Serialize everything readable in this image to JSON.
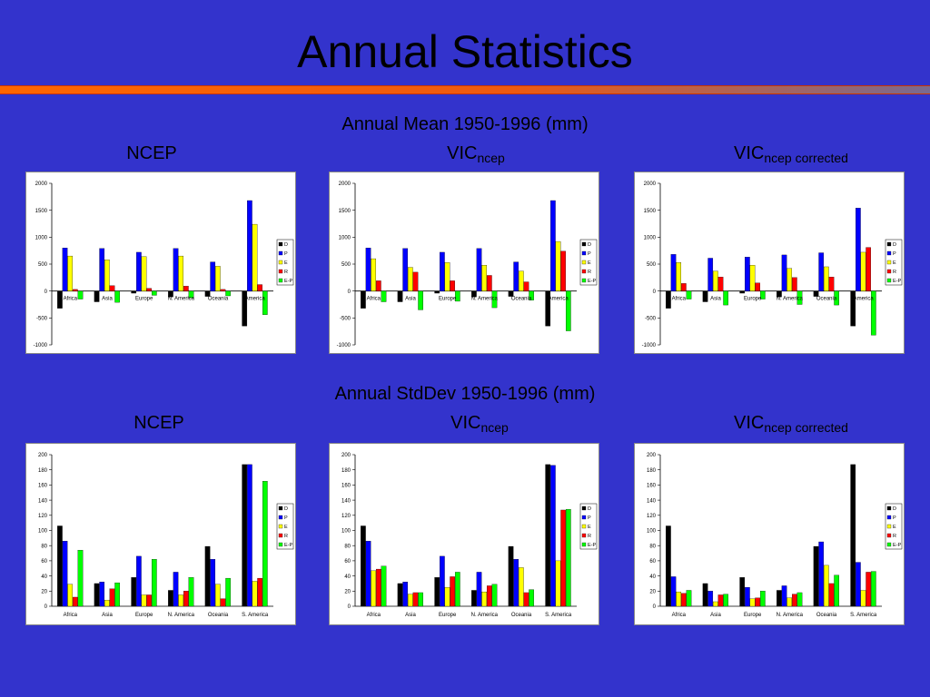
{
  "slide": {
    "title": "Annual Statistics"
  },
  "sections": {
    "mean": "Annual Mean 1950-1996 (mm)",
    "stddev": "Annual StdDev 1950-1996 (mm)"
  },
  "labels": {
    "ncep": "NCEP",
    "vic": "VIC",
    "sub_ncep": "ncep",
    "sub_corrected": "ncep corrected"
  },
  "colors": {
    "D": "#000000",
    "P": "#0000ff",
    "E": "#ffff00",
    "R": "#ff0000",
    "E-P": "#00ff00"
  },
  "chart_data": [
    {
      "type": "bar",
      "id": "mean-ncep",
      "categories": [
        "Africa",
        "Asia",
        "Europe",
        "N. America",
        "Oceania",
        "America"
      ],
      "ylim": [
        -1000,
        2000
      ],
      "yticks": [
        -1000,
        -500,
        0,
        500,
        1000,
        1500,
        2000
      ],
      "legend": "right",
      "series": [
        {
          "name": "D",
          "values": [
            -320,
            -200,
            -40,
            -110,
            -100,
            -650
          ]
        },
        {
          "name": "P",
          "values": [
            800,
            790,
            720,
            790,
            540,
            1680
          ]
        },
        {
          "name": "E",
          "values": [
            650,
            580,
            640,
            650,
            460,
            1240
          ]
        },
        {
          "name": "R",
          "values": [
            30,
            100,
            50,
            90,
            30,
            120
          ]
        },
        {
          "name": "E-P",
          "values": [
            -150,
            -210,
            -80,
            -130,
            -90,
            -440
          ]
        }
      ]
    },
    {
      "type": "bar",
      "id": "mean-vic-ncep",
      "categories": [
        "Africa",
        "Asia",
        "Europe",
        "N. America",
        "Oceania",
        "America"
      ],
      "ylim": [
        -1000,
        2000
      ],
      "yticks": [
        -1000,
        -500,
        0,
        500,
        1000,
        1500,
        2000
      ],
      "legend": "right",
      "series": [
        {
          "name": "D",
          "values": [
            -320,
            -200,
            -40,
            -110,
            -100,
            -650
          ]
        },
        {
          "name": "P",
          "values": [
            800,
            790,
            720,
            790,
            540,
            1680
          ]
        },
        {
          "name": "E",
          "values": [
            600,
            440,
            530,
            480,
            370,
            920
          ]
        },
        {
          "name": "R",
          "values": [
            190,
            350,
            190,
            290,
            170,
            740
          ]
        },
        {
          "name": "E-P",
          "values": [
            -200,
            -350,
            -190,
            -310,
            -170,
            -740
          ]
        }
      ]
    },
    {
      "type": "bar",
      "id": "mean-vic-corrected",
      "categories": [
        "Africa",
        "Asia",
        "Europe",
        "N. America",
        "Oceania",
        "America"
      ],
      "ylim": [
        -1000,
        2000
      ],
      "yticks": [
        -1000,
        -500,
        0,
        500,
        1000,
        1500,
        2000
      ],
      "legend": "right",
      "series": [
        {
          "name": "D",
          "values": [
            -320,
            -200,
            -40,
            -110,
            -100,
            -650
          ]
        },
        {
          "name": "P",
          "values": [
            680,
            610,
            630,
            670,
            710,
            1540
          ]
        },
        {
          "name": "E",
          "values": [
            530,
            370,
            480,
            420,
            450,
            720
          ]
        },
        {
          "name": "R",
          "values": [
            140,
            260,
            150,
            250,
            260,
            810
          ]
        },
        {
          "name": "E-P",
          "values": [
            -150,
            -260,
            -150,
            -250,
            -260,
            -820
          ]
        }
      ]
    },
    {
      "type": "bar",
      "id": "sd-ncep",
      "categories": [
        "Africa",
        "Asia",
        "Europe",
        "N. America",
        "Oceania",
        "S. America"
      ],
      "ylim": [
        0,
        200
      ],
      "yticks": [
        0,
        20,
        40,
        60,
        80,
        100,
        120,
        140,
        160,
        180,
        200
      ],
      "legend": "right",
      "series": [
        {
          "name": "D",
          "values": [
            106,
            30,
            38,
            21,
            79,
            187
          ]
        },
        {
          "name": "P",
          "values": [
            86,
            32,
            66,
            45,
            62,
            187
          ]
        },
        {
          "name": "E",
          "values": [
            29,
            8,
            15,
            15,
            29,
            33
          ]
        },
        {
          "name": "R",
          "values": [
            12,
            23,
            15,
            20,
            10,
            37
          ]
        },
        {
          "name": "E-P",
          "values": [
            74,
            31,
            62,
            38,
            37,
            165
          ]
        }
      ]
    },
    {
      "type": "bar",
      "id": "sd-vic-ncep",
      "categories": [
        "Africa",
        "Asia",
        "Europe",
        "N. America",
        "Oceania",
        "S. America"
      ],
      "ylim": [
        0,
        200
      ],
      "yticks": [
        0,
        20,
        40,
        60,
        80,
        100,
        120,
        140,
        160,
        180,
        200
      ],
      "legend": "right",
      "series": [
        {
          "name": "D",
          "values": [
            106,
            30,
            38,
            21,
            79,
            187
          ]
        },
        {
          "name": "P",
          "values": [
            86,
            32,
            66,
            45,
            62,
            186
          ]
        },
        {
          "name": "E",
          "values": [
            47,
            16,
            25,
            19,
            51,
            60
          ]
        },
        {
          "name": "R",
          "values": [
            49,
            18,
            39,
            27,
            18,
            127
          ]
        },
        {
          "name": "E-P",
          "values": [
            53,
            18,
            45,
            29,
            22,
            128
          ]
        }
      ]
    },
    {
      "type": "bar",
      "id": "sd-vic-corrected",
      "categories": [
        "Africa",
        "Asia",
        "Europe",
        "N. America",
        "Oceania",
        "S. America"
      ],
      "ylim": [
        0,
        200
      ],
      "yticks": [
        0,
        20,
        40,
        60,
        80,
        100,
        120,
        140,
        160,
        180,
        200
      ],
      "legend": "right",
      "series": [
        {
          "name": "D",
          "values": [
            106,
            30,
            38,
            21,
            79,
            187
          ]
        },
        {
          "name": "P",
          "values": [
            39,
            20,
            25,
            27,
            85,
            58
          ]
        },
        {
          "name": "E",
          "values": [
            19,
            6,
            10,
            11,
            54,
            21
          ]
        },
        {
          "name": "R",
          "values": [
            17,
            15,
            11,
            16,
            30,
            45
          ]
        },
        {
          "name": "E-P",
          "values": [
            21,
            16,
            20,
            18,
            41,
            46
          ]
        }
      ]
    }
  ]
}
